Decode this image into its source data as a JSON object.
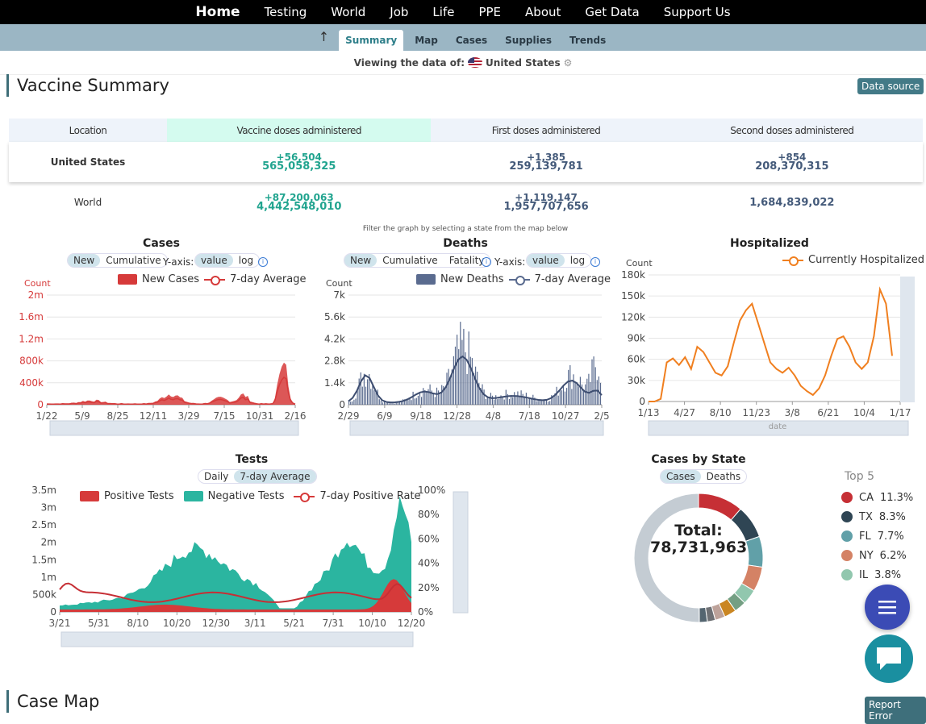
{
  "nav": {
    "items": [
      "Home",
      "Testing",
      "World",
      "Job",
      "Life",
      "PPE",
      "About",
      "Get Data",
      "Support Us"
    ]
  },
  "subnav": {
    "tabs": [
      "Summary",
      "Map",
      "Cases",
      "Supplies",
      "Trends"
    ],
    "active": "Summary"
  },
  "viewing": {
    "label": "Viewing the data of:",
    "region": "United States"
  },
  "vaccine": {
    "title": "Vaccine Summary",
    "data_source": "Data source",
    "headers": [
      "Location",
      "Vaccine doses administered",
      "First doses administered",
      "Second doses administered"
    ],
    "rows": [
      {
        "location": "United States",
        "doses_inc": "+56,504",
        "doses": "565,058,325",
        "first_inc": "+1,385",
        "first": "259,139,781",
        "second_inc": "+854",
        "second": "208,370,315"
      },
      {
        "location": "World",
        "doses_inc": "+87,200,063",
        "doses": "4,442,548,010",
        "first_inc": "+1,119,147",
        "first": "1,957,707,656",
        "second_inc": "",
        "second": "1,684,839,022"
      }
    ]
  },
  "filter_note": "Filter the graph by selecting a state from the map below",
  "cases_chart": {
    "title": "Cases",
    "toggles": [
      "New",
      "Cumulative"
    ],
    "active_toggle": "New",
    "yaxis_label": "Y-axis:",
    "scale_toggles": [
      "value",
      "log"
    ],
    "active_scale": "value",
    "legend": [
      "New Cases",
      "7-day Average"
    ],
    "ylabel": "Count",
    "yticks": [
      "2m",
      "1.6m",
      "1.2m",
      "800k",
      "400k",
      "0"
    ],
    "xticks": [
      "1/22",
      "5/9",
      "8/25",
      "12/11",
      "3/29",
      "7/15",
      "10/31",
      "2/16"
    ],
    "color": "#d63a3a"
  },
  "deaths_chart": {
    "title": "Deaths",
    "toggles": [
      "New",
      "Cumulative",
      "Fatality"
    ],
    "active_toggle": "New",
    "yaxis_label": "Y-axis:",
    "scale_toggles": [
      "value",
      "log"
    ],
    "active_scale": "value",
    "legend": [
      "New Deaths",
      "7-day Average"
    ],
    "ylabel": "Count",
    "yticks": [
      "7k",
      "5.6k",
      "4.2k",
      "2.8k",
      "1.4k",
      "0"
    ],
    "xticks": [
      "2/29",
      "6/9",
      "9/18",
      "12/28",
      "4/8",
      "7/18",
      "10/27",
      "2/5"
    ],
    "color": "#5a6b8f"
  },
  "hosp_chart": {
    "title": "Hospitalized",
    "legend": [
      "Currently Hospitalized"
    ],
    "ylabel": "Count",
    "yticks": [
      "180k",
      "150k",
      "120k",
      "90k",
      "60k",
      "30k",
      "0"
    ],
    "xticks": [
      "1/13",
      "4/27",
      "8/10",
      "11/23",
      "3/8",
      "6/21",
      "10/4",
      "1/17"
    ],
    "xlabel": "date",
    "color": "#f07f1f"
  },
  "tests_chart": {
    "title": "Tests",
    "toggles": [
      "Daily",
      "7-day Average"
    ],
    "active_toggle": "7-day Average",
    "legend": [
      "Positive Tests",
      "Negative Tests",
      "7-day Positive Rate"
    ],
    "yticks": [
      "3.5m",
      "3m",
      "2.5m",
      "2m",
      "1.5m",
      "1m",
      "500k",
      "0"
    ],
    "yticks_right": [
      "100%",
      "80%",
      "60%",
      "40%",
      "20%",
      "0%"
    ],
    "xticks": [
      "3/21",
      "5/31",
      "8/10",
      "10/20",
      "12/30",
      "3/11",
      "5/21",
      "7/31",
      "10/10",
      "12/20"
    ],
    "colors": {
      "positive": "#d63a3a",
      "negative": "#2bb5a0"
    }
  },
  "state_chart": {
    "title": "Cases by State",
    "toggles": [
      "Cases",
      "Deaths"
    ],
    "active_toggle": "Cases",
    "total_label": "Total:",
    "total": "78,731,963",
    "top5_title": "Top 5",
    "top5": [
      {
        "state": "CA",
        "pct": "11.3%",
        "color": "#c62f35"
      },
      {
        "state": "TX",
        "pct": "8.3%",
        "color": "#2f4554"
      },
      {
        "state": "FL",
        "pct": "7.7%",
        "color": "#61a0a8"
      },
      {
        "state": "NY",
        "pct": "6.2%",
        "color": "#d48265"
      },
      {
        "state": "IL",
        "pct": "3.8%",
        "color": "#91c7ae"
      }
    ]
  },
  "case_map": {
    "title": "Case Map",
    "report": "Report Error"
  }
}
